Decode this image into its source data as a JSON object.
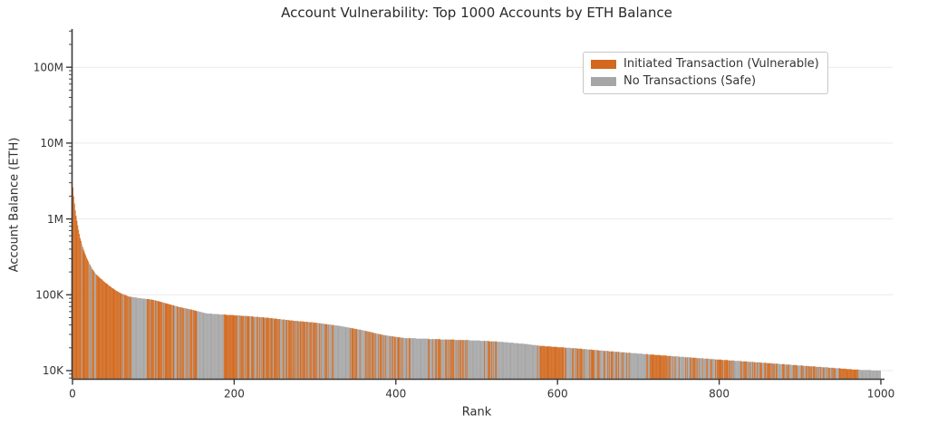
{
  "chart_data": {
    "type": "bar",
    "title": "Account Vulnerability: Top 1000 Accounts by ETH Balance",
    "xlabel": "Rank",
    "ylabel": "Account Balance (ETH)",
    "y_scale": "log",
    "ylim": [
      8000,
      320000000
    ],
    "xlim": [
      0,
      1015
    ],
    "grid": "horizontal-light",
    "grid_color": "#eaeaea",
    "n_bars": 1000,
    "x_ticks": [
      0,
      200,
      400,
      600,
      800,
      1000
    ],
    "y_ticks": [
      {
        "value": 10000,
        "label": "10K"
      },
      {
        "value": 100000,
        "label": "100K"
      },
      {
        "value": 1000000,
        "label": "1M"
      },
      {
        "value": 10000000,
        "label": "10M"
      },
      {
        "value": 100000000,
        "label": "100M"
      }
    ],
    "balance_anchors": [
      [
        1,
        2600000
      ],
      [
        2,
        2000000
      ],
      [
        3,
        1600000
      ],
      [
        4,
        1300000
      ],
      [
        5,
        1100000
      ],
      [
        7,
        820000
      ],
      [
        10,
        560000
      ],
      [
        13,
        430000
      ],
      [
        16,
        350000
      ],
      [
        20,
        275000
      ],
      [
        25,
        220000
      ],
      [
        30,
        185000
      ],
      [
        40,
        148000
      ],
      [
        50,
        122000
      ],
      [
        60,
        105000
      ],
      [
        70,
        95000
      ],
      [
        85,
        90000
      ],
      [
        100,
        86000
      ],
      [
        115,
        78000
      ],
      [
        130,
        70000
      ],
      [
        150,
        63000
      ],
      [
        165,
        57000
      ],
      [
        185,
        55000
      ],
      [
        210,
        53000
      ],
      [
        240,
        50000
      ],
      [
        270,
        46000
      ],
      [
        300,
        43000
      ],
      [
        330,
        39000
      ],
      [
        360,
        34000
      ],
      [
        385,
        29500
      ],
      [
        410,
        27000
      ],
      [
        450,
        26000
      ],
      [
        500,
        25000
      ],
      [
        530,
        24000
      ],
      [
        560,
        22500
      ],
      [
        580,
        21200
      ],
      [
        620,
        19800
      ],
      [
        660,
        18200
      ],
      [
        700,
        16800
      ],
      [
        740,
        15600
      ],
      [
        780,
        14500
      ],
      [
        820,
        13500
      ],
      [
        860,
        12600
      ],
      [
        900,
        11700
      ],
      [
        940,
        10900
      ],
      [
        970,
        10300
      ],
      [
        1000,
        10000
      ]
    ],
    "legend": [
      {
        "key": "vulnerable",
        "label": "Initiated Transaction (Vulnerable)",
        "color": "#d2691e"
      },
      {
        "key": "safe",
        "label": "No Transactions (Safe)",
        "color": "#a6a6a6"
      }
    ],
    "legend_position": "upper right",
    "color_pattern": {
      "seed": 42,
      "gray_runs": [
        [
          74,
          88
        ],
        [
          157,
          187
        ],
        [
          325,
          341
        ],
        [
          420,
          440
        ],
        [
          490,
          505
        ],
        [
          527,
          575
        ],
        [
          692,
          710
        ],
        [
          973,
          1000
        ]
      ],
      "orange_runs": [
        [
          1,
          6
        ],
        [
          30,
          60
        ],
        [
          188,
          204
        ],
        [
          580,
          600
        ],
        [
          715,
          736
        ],
        [
          950,
          972
        ]
      ],
      "orange_probability_by_rank": [
        [
          0,
          0.8
        ],
        [
          120,
          0.62
        ],
        [
          300,
          0.55
        ],
        [
          500,
          0.5
        ],
        [
          800,
          0.45
        ],
        [
          1000,
          0.5
        ]
      ]
    },
    "axis_text_color": "#333333",
    "spine_color": "#3a3a3a"
  }
}
